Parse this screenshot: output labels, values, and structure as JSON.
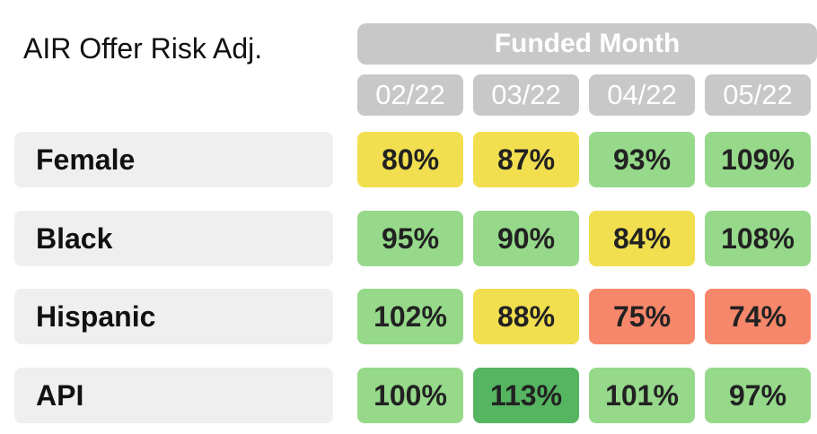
{
  "chart_data": {
    "type": "heatmap",
    "title": "AIR Offer Risk Adj.",
    "column_group_label": "Funded Month",
    "columns": [
      "02/22",
      "03/22",
      "04/22",
      "05/22"
    ],
    "rows": [
      {
        "label": "Female",
        "values": [
          "80%",
          "87%",
          "93%",
          "109%"
        ],
        "colors": [
          "#f2df4f",
          "#f2df4f",
          "#96d98a",
          "#96d98a"
        ]
      },
      {
        "label": "Black",
        "values": [
          "95%",
          "90%",
          "84%",
          "108%"
        ],
        "colors": [
          "#96d98a",
          "#96d98a",
          "#f2df4f",
          "#96d98a"
        ]
      },
      {
        "label": "Hispanic",
        "values": [
          "102%",
          "88%",
          "75%",
          "74%"
        ],
        "colors": [
          "#96d98a",
          "#f2df4f",
          "#f7876a",
          "#f7876a"
        ]
      },
      {
        "label": "API",
        "values": [
          "100%",
          "113%",
          "101%",
          "97%"
        ],
        "colors": [
          "#96d98a",
          "#55b560",
          "#96d98a",
          "#96d98a"
        ]
      }
    ],
    "colors": {
      "header": "#c8c8c8",
      "row_label_bg": "#efefef"
    }
  }
}
